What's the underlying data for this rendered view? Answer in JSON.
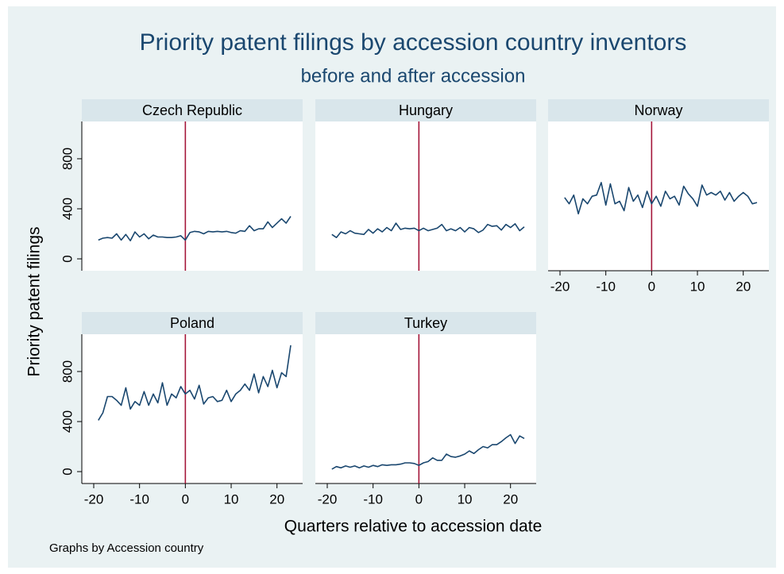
{
  "title": "Priority patent filings by accession country inventors",
  "subtitle": "before and after accession",
  "ylabel": "Priority patent filings",
  "xlabel": "Quarters relative to accession date",
  "note": "Graphs by Accession country",
  "chart_data": [
    {
      "type": "line",
      "title": "Czech Republic",
      "color": "#1a476f",
      "x": [
        -19,
        -18,
        -17,
        -16,
        -15,
        -14,
        -13,
        -12,
        -11,
        -10,
        -9,
        -8,
        -7,
        -6,
        -5,
        -4,
        -3,
        -2,
        -1,
        0,
        1,
        2,
        3,
        4,
        5,
        6,
        7,
        8,
        9,
        10,
        11,
        12,
        13,
        14,
        15,
        16,
        17,
        18,
        19,
        20,
        21,
        22,
        23
      ],
      "values": [
        150,
        165,
        170,
        165,
        200,
        150,
        195,
        145,
        215,
        175,
        200,
        160,
        190,
        175,
        175,
        170,
        170,
        175,
        185,
        150,
        210,
        220,
        215,
        200,
        220,
        215,
        220,
        215,
        220,
        210,
        205,
        225,
        220,
        265,
        225,
        240,
        240,
        295,
        250,
        285,
        320,
        285,
        340
      ],
      "xline": {
        "value": 0,
        "color": "#a5173a"
      },
      "xlim": [
        -22.6,
        25.6
      ],
      "ylim": [
        -95,
        1098
      ],
      "yticks": [
        0,
        400,
        800
      ]
    },
    {
      "type": "line",
      "title": "Hungary",
      "color": "#1a476f",
      "x": [
        -19,
        -18,
        -17,
        -16,
        -15,
        -14,
        -13,
        -12,
        -11,
        -10,
        -9,
        -8,
        -7,
        -6,
        -5,
        -4,
        -3,
        -2,
        -1,
        0,
        1,
        2,
        3,
        4,
        5,
        6,
        7,
        8,
        9,
        10,
        11,
        12,
        13,
        14,
        15,
        16,
        17,
        18,
        19,
        20,
        21,
        22,
        23
      ],
      "values": [
        195,
        170,
        215,
        200,
        225,
        205,
        200,
        195,
        235,
        205,
        240,
        215,
        250,
        225,
        285,
        235,
        245,
        240,
        245,
        225,
        245,
        225,
        235,
        245,
        275,
        225,
        240,
        225,
        250,
        215,
        250,
        240,
        210,
        230,
        275,
        260,
        265,
        230,
        275,
        250,
        280,
        225,
        255
      ],
      "xline": {
        "value": 0,
        "color": "#a5173a"
      },
      "xlim": [
        -22.6,
        25.6
      ],
      "ylim": [
        -95,
        1098
      ]
    },
    {
      "type": "line",
      "title": "Norway",
      "color": "#1a476f",
      "x": [
        -19,
        -18,
        -17,
        -16,
        -15,
        -14,
        -13,
        -12,
        -11,
        -10,
        -9,
        -8,
        -7,
        -6,
        -5,
        -4,
        -3,
        -2,
        -1,
        0,
        1,
        2,
        3,
        4,
        5,
        6,
        7,
        8,
        9,
        10,
        11,
        12,
        13,
        14,
        15,
        16,
        17,
        18,
        19,
        20,
        21,
        22,
        23
      ],
      "values": [
        490,
        440,
        510,
        360,
        480,
        440,
        500,
        510,
        610,
        430,
        600,
        440,
        460,
        385,
        570,
        460,
        510,
        410,
        540,
        440,
        500,
        420,
        540,
        480,
        500,
        430,
        580,
        520,
        480,
        420,
        590,
        510,
        530,
        510,
        540,
        470,
        530,
        460,
        500,
        530,
        500,
        440,
        450
      ],
      "xline": {
        "value": 0,
        "color": "#a5173a"
      },
      "xlim": [
        -22.6,
        25.6
      ],
      "ylim": [
        -95,
        1098
      ],
      "xticks": [
        -20,
        -10,
        0,
        10,
        20
      ]
    },
    {
      "type": "line",
      "title": "Poland",
      "color": "#1a476f",
      "x": [
        -19,
        -18,
        -17,
        -16,
        -15,
        -14,
        -13,
        -12,
        -11,
        -10,
        -9,
        -8,
        -7,
        -6,
        -5,
        -4,
        -3,
        -2,
        -1,
        0,
        1,
        2,
        3,
        4,
        5,
        6,
        7,
        8,
        9,
        10,
        11,
        12,
        13,
        14,
        15,
        16,
        17,
        18,
        19,
        20,
        21,
        22,
        23
      ],
      "values": [
        410,
        470,
        600,
        600,
        570,
        530,
        670,
        500,
        560,
        530,
        640,
        530,
        620,
        550,
        710,
        530,
        620,
        590,
        680,
        620,
        650,
        580,
        690,
        540,
        590,
        600,
        560,
        570,
        650,
        560,
        620,
        650,
        700,
        650,
        780,
        630,
        760,
        680,
        810,
        670,
        790,
        760,
        1010
      ],
      "xline": {
        "value": 0,
        "color": "#a5173a"
      },
      "xlim": [
        -22.6,
        25.6
      ],
      "ylim": [
        -95,
        1098
      ],
      "xticks": [
        -20,
        -10,
        0,
        10,
        20
      ],
      "yticks": [
        0,
        400,
        800
      ]
    },
    {
      "type": "line",
      "title": "Turkey",
      "color": "#1a476f",
      "x": [
        -19,
        -18,
        -17,
        -16,
        -15,
        -14,
        -13,
        -12,
        -11,
        -10,
        -9,
        -8,
        -7,
        -6,
        -5,
        -4,
        -3,
        -2,
        -1,
        0,
        1,
        2,
        3,
        4,
        5,
        6,
        7,
        8,
        9,
        10,
        11,
        12,
        13,
        14,
        15,
        16,
        17,
        18,
        19,
        20,
        21,
        22,
        23
      ],
      "values": [
        20,
        40,
        30,
        45,
        35,
        45,
        30,
        45,
        35,
        50,
        40,
        55,
        50,
        55,
        55,
        60,
        70,
        70,
        65,
        50,
        70,
        80,
        110,
        90,
        90,
        140,
        120,
        115,
        125,
        140,
        165,
        145,
        175,
        200,
        190,
        215,
        215,
        240,
        270,
        295,
        225,
        285,
        265
      ],
      "xline": {
        "value": 0,
        "color": "#a5173a"
      },
      "xlim": [
        -22.6,
        25.6
      ],
      "ylim": [
        -95,
        1098
      ],
      "xticks": [
        -20,
        -10,
        0,
        10,
        20
      ]
    }
  ]
}
